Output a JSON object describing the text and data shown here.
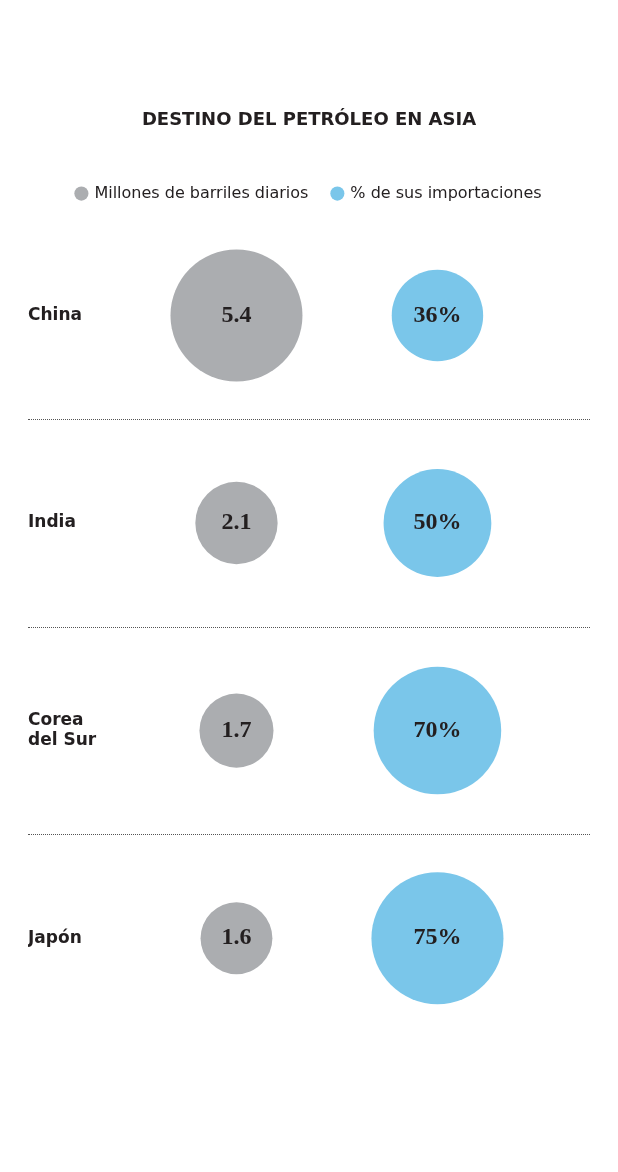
{
  "chart_data": {
    "type": "other",
    "title": "DESTINO DEL PETRÓLEO EN ASIA",
    "categories": [
      "China",
      "India",
      "Corea del Sur",
      "Japón"
    ],
    "legend": "top",
    "data_labels": true,
    "series": [
      {
        "name": "Millones de barriles diarios",
        "color": "#abadb0",
        "values": [
          5.4,
          2.1,
          1.7,
          1.6
        ]
      },
      {
        "name": "% de sus importaciones",
        "color": "#7ac6ea",
        "values": [
          36,
          50,
          70,
          75
        ],
        "value_labels": [
          "36%",
          "50%",
          "70%",
          "75%"
        ]
      }
    ]
  }
}
